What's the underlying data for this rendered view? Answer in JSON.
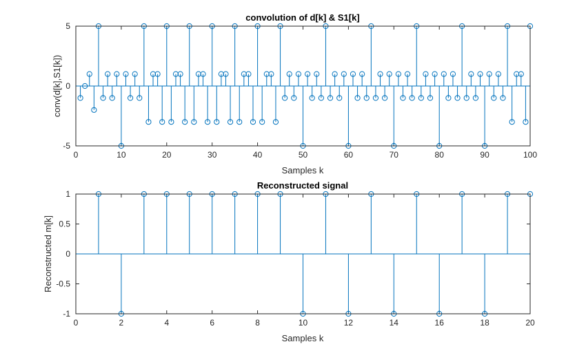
{
  "colors": {
    "stem": "#0072BD",
    "axis": "#262626",
    "background": "#ffffff"
  },
  "chart_data": [
    {
      "type": "stem",
      "title": "convolution of d[k] & S1[k]",
      "xlabel": "Samples k",
      "ylabel": "conv(d[k],S1[k])",
      "xlim": [
        0,
        100
      ],
      "ylim": [
        -5,
        5
      ],
      "xticks": [
        "0",
        "10",
        "20",
        "30",
        "40",
        "50",
        "60",
        "70",
        "80",
        "90",
        "100"
      ],
      "yticks": [
        "-5",
        "0",
        "5"
      ],
      "grid": false,
      "x": [
        1,
        2,
        3,
        4,
        5,
        6,
        7,
        8,
        9,
        10,
        11,
        12,
        13,
        14,
        15,
        16,
        17,
        18,
        19,
        20,
        21,
        22,
        23,
        24,
        25,
        26,
        27,
        28,
        29,
        30,
        31,
        32,
        33,
        34,
        35,
        36,
        37,
        38,
        39,
        40,
        41,
        42,
        43,
        44,
        45,
        46,
        47,
        48,
        49,
        50,
        51,
        52,
        53,
        54,
        55,
        56,
        57,
        58,
        59,
        60,
        61,
        62,
        63,
        64,
        65,
        66,
        67,
        68,
        69,
        70,
        71,
        72,
        73,
        74,
        75,
        76,
        77,
        78,
        79,
        80,
        81,
        82,
        83,
        84,
        85,
        86,
        87,
        88,
        89,
        90,
        91,
        92,
        93,
        94,
        95,
        96,
        97,
        98,
        99,
        100
      ],
      "values": [
        -1,
        0,
        1,
        -2,
        5,
        -1,
        1,
        -1,
        1,
        -5,
        1,
        -1,
        1,
        -1,
        5,
        -3,
        1,
        1,
        -3,
        5,
        -3,
        1,
        1,
        -3,
        5,
        -3,
        1,
        1,
        -3,
        5,
        -3,
        1,
        1,
        -3,
        5,
        -3,
        1,
        1,
        -3,
        5,
        -3,
        1,
        1,
        -3,
        5,
        -1,
        1,
        -1,
        1,
        -5,
        1,
        -1,
        1,
        -1,
        5,
        -1,
        1,
        -1,
        1,
        -5,
        1,
        -1,
        1,
        -1,
        5,
        -1,
        1,
        -1,
        1,
        -5,
        1,
        -1,
        1,
        -1,
        5,
        -1,
        1,
        -1,
        1,
        -5,
        1,
        -1,
        1,
        -1,
        5,
        -1,
        1,
        -1,
        1,
        -5,
        1,
        -1,
        1,
        -1,
        5,
        -3,
        1,
        1,
        -3,
        5
      ]
    },
    {
      "type": "stem",
      "title": "Reconstructed signal",
      "xlabel": "Samples k",
      "ylabel": "Reconstructed m[k]",
      "xlim": [
        0,
        20
      ],
      "ylim": [
        -1,
        1
      ],
      "xticks": [
        "0",
        "2",
        "4",
        "6",
        "8",
        "10",
        "12",
        "14",
        "16",
        "18",
        "20"
      ],
      "yticks": [
        "-1",
        "-0.5",
        "0",
        "0.5",
        "1"
      ],
      "grid": false,
      "x": [
        1,
        2,
        3,
        4,
        5,
        6,
        7,
        8,
        9,
        10,
        11,
        12,
        13,
        14,
        15,
        16,
        17,
        18,
        19,
        20
      ],
      "values": [
        1,
        -1,
        1,
        1,
        1,
        1,
        1,
        1,
        1,
        -1,
        1,
        -1,
        1,
        -1,
        1,
        -1,
        1,
        -1,
        1,
        1
      ]
    }
  ]
}
